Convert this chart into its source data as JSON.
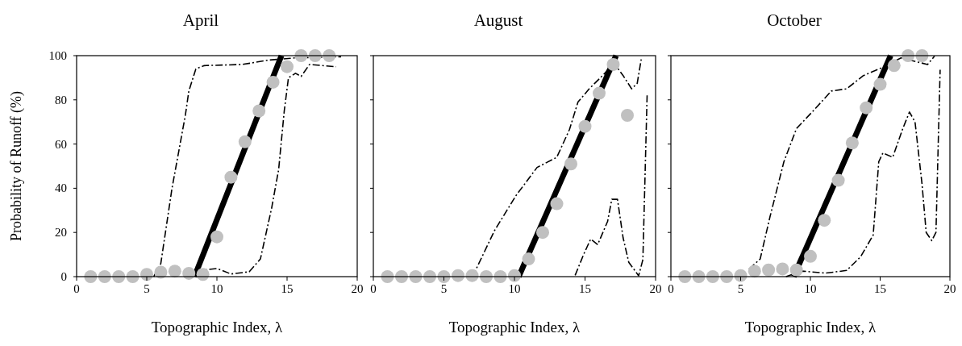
{
  "chart_data": [
    {
      "type": "scatter",
      "title": "April",
      "xlabel": "Topographic Index, λ",
      "ylabel": "Probability of Runoff (%)",
      "xlim": [
        0,
        20
      ],
      "xticks": [
        0,
        5,
        10,
        15,
        20
      ],
      "ylim": [
        0,
        100
      ],
      "yticks": [
        0,
        20,
        40,
        60,
        80,
        100
      ],
      "grid": false,
      "series": [
        {
          "type": "line",
          "line_style": "dashed",
          "color": "#000000",
          "x": [
            5.5,
            6.0,
            6.8,
            7.75,
            8.0,
            8.5,
            9.1,
            11.8,
            13.7,
            15.6,
            18.85
          ],
          "values": [
            0,
            5.9,
            40,
            73,
            84,
            94,
            95.5,
            96,
            98,
            99,
            99.5
          ]
        },
        {
          "type": "line",
          "line_style": "dashed",
          "color": "#000000",
          "x": [
            8.5,
            9.1,
            10.0,
            11.0,
            12.3,
            13.1,
            13.9,
            14.4,
            14.8,
            15.1,
            15.6,
            16.0,
            16.6,
            18.5
          ],
          "values": [
            2,
            3,
            3.7,
            1.2,
            2.2,
            8,
            31,
            48.5,
            75,
            90,
            92,
            90.6,
            96,
            95
          ]
        },
        {
          "type": "line",
          "line_style": "solid",
          "color": "#000000",
          "x": [
            8.4,
            14.6
          ],
          "values": [
            0,
            100
          ]
        },
        {
          "marker": "circle",
          "color": "#c0c0c0",
          "x": [
            1,
            2,
            3,
            4,
            5,
            6,
            7,
            8,
            9,
            10,
            11,
            12,
            13,
            14,
            15,
            16,
            17,
            18
          ],
          "values": [
            0,
            0,
            0,
            0,
            1,
            2,
            2.5,
            1.5,
            1,
            18,
            45,
            61,
            75,
            88,
            95,
            100,
            100,
            100
          ]
        }
      ]
    },
    {
      "type": "scatter",
      "title": "August",
      "xlabel": "Topographic Index, λ",
      "xlim": [
        0,
        20
      ],
      "xticks": [
        0,
        5,
        10,
        15,
        20
      ],
      "ylim": [
        0,
        100
      ],
      "yticks": [
        0,
        20,
        40,
        60,
        80,
        100
      ],
      "tick_labels": "x",
      "grid": false,
      "series": [
        {
          "type": "line",
          "line_style": "dashed",
          "color": "#000000",
          "x": [
            7.0,
            7.35,
            8.6,
            10.1,
            11.6,
            13.0,
            13.9,
            14.5,
            15.3,
            16.4,
            17.0,
            17.7,
            18.3,
            18.7,
            19.0
          ],
          "values": [
            0,
            4.3,
            21,
            36.6,
            49.4,
            54,
            66.6,
            79,
            85,
            92,
            97,
            91,
            85,
            87.5,
            99
          ]
        },
        {
          "type": "line",
          "line_style": "dashed",
          "color": "#000000",
          "x": [
            14.3,
            14.9,
            15.4,
            15.9,
            16.6,
            16.9,
            17.3,
            17.7,
            18.1,
            18.8,
            19.1,
            19.4
          ],
          "values": [
            0.6,
            10,
            17,
            14.5,
            25,
            35,
            35,
            17.5,
            6.5,
            0.4,
            7.7,
            82
          ]
        },
        {
          "type": "line",
          "line_style": "solid",
          "color": "#000000",
          "x": [
            10.3,
            17.2
          ],
          "values": [
            0,
            100
          ]
        },
        {
          "marker": "circle",
          "color": "#c0c0c0",
          "x": [
            1,
            2,
            3,
            4,
            5,
            6,
            7,
            8,
            9,
            10,
            11,
            12,
            13,
            14,
            15,
            16,
            17,
            18
          ],
          "values": [
            0,
            0,
            0,
            0,
            0,
            0.5,
            0.5,
            0,
            0,
            0.5,
            8,
            20,
            33,
            51,
            68,
            83,
            96,
            73
          ]
        }
      ]
    },
    {
      "type": "scatter",
      "title": "October",
      "xlabel": "Topographic Index, λ",
      "xlim": [
        0,
        20
      ],
      "xticks": [
        0,
        5,
        10,
        15,
        20
      ],
      "ylim": [
        0,
        100
      ],
      "yticks": [
        0,
        20,
        40,
        60,
        80,
        100
      ],
      "tick_labels": "x",
      "grid": false,
      "series": [
        {
          "type": "line",
          "line_style": "dashed",
          "color": "#000000",
          "x": [
            5.6,
            6.4,
            7.1,
            8.1,
            9.0,
            10.2,
            11.5,
            12.6,
            13.8,
            15.3,
            16.5,
            18.4,
            18.9
          ],
          "values": [
            3.4,
            8,
            27,
            52,
            67,
            75,
            84,
            85,
            91,
            95,
            99,
            96,
            99.8
          ]
        },
        {
          "type": "line",
          "line_style": "dashed",
          "color": "#000000",
          "x": [
            8.25,
            9.4,
            11.1,
            12.6,
            13.6,
            14.5,
            14.9,
            15.2,
            15.9,
            16.6,
            17.1,
            17.5,
            18.0,
            18.3,
            18.7,
            19.0,
            19.3
          ],
          "values": [
            0,
            2.5,
            1.6,
            2.8,
            9,
            18.8,
            52,
            56,
            54,
            66.6,
            74.5,
            70,
            42,
            20,
            16.3,
            20,
            93.6
          ]
        },
        {
          "type": "line",
          "line_style": "solid",
          "color": "#000000",
          "x": [
            8.8,
            15.75
          ],
          "values": [
            0,
            100
          ]
        },
        {
          "marker": "circle",
          "color": "#c0c0c0",
          "x": [
            1,
            2,
            3,
            4,
            5,
            6,
            7,
            8,
            9,
            10,
            11,
            12,
            13,
            14,
            15,
            16,
            17,
            18
          ],
          "values": [
            0,
            0,
            0,
            0,
            0.5,
            2.5,
            3,
            3.5,
            3,
            9.2,
            25.5,
            43.6,
            60.5,
            76.4,
            87,
            95.5,
            100,
            100
          ]
        }
      ]
    }
  ]
}
